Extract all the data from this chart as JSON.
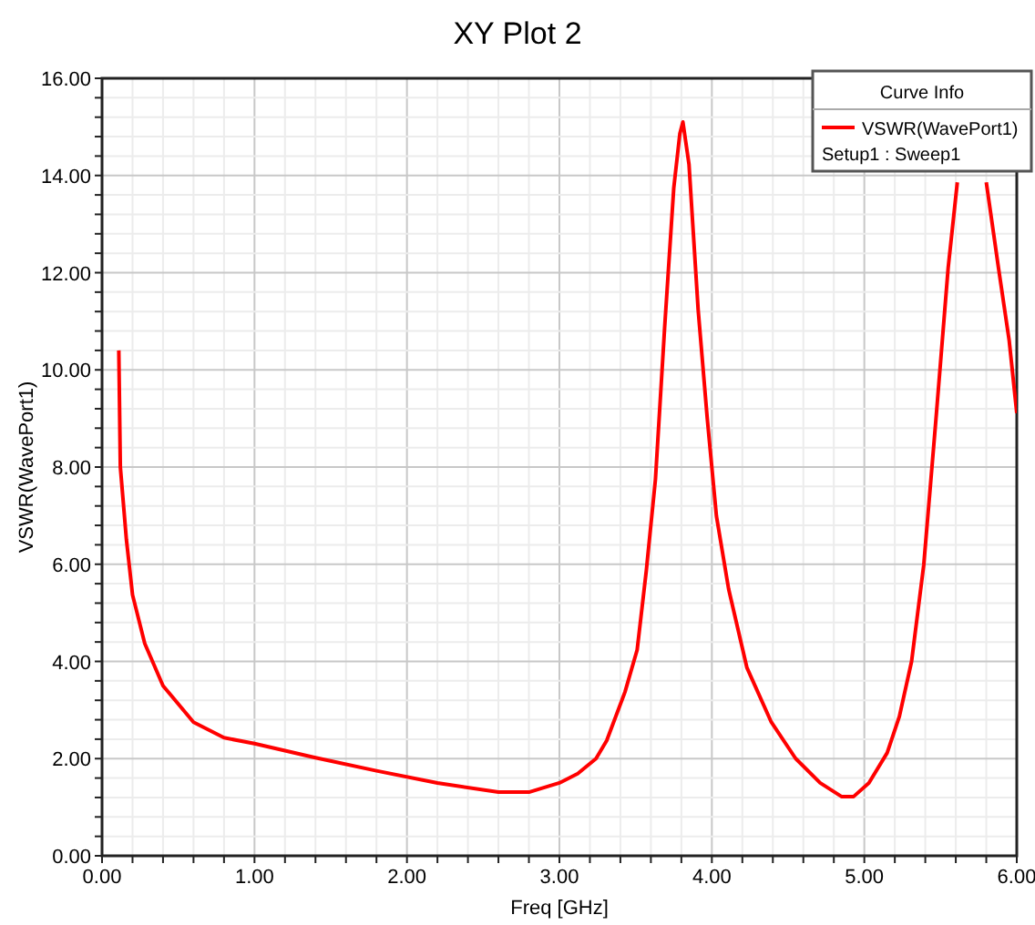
{
  "chart_data": {
    "type": "line",
    "title": "XY Plot 2",
    "xlabel": "Freq [GHz]",
    "ylabel": "VSWR(WavePort1)",
    "legend_title": "Curve Info",
    "annotations": [
      "Setup1 : Sweep1"
    ],
    "xlim": [
      0,
      6
    ],
    "ylim": [
      0,
      16
    ],
    "xticks": [
      {
        "value": 0,
        "label": "0.00"
      },
      {
        "value": 0.2,
        "label": null
      },
      {
        "value": 0.4,
        "label": null
      },
      {
        "value": 0.6,
        "label": null
      },
      {
        "value": 0.8,
        "label": null
      },
      {
        "value": 1,
        "label": "1.00"
      },
      {
        "value": 1.2,
        "label": null
      },
      {
        "value": 1.4,
        "label": null
      },
      {
        "value": 1.6,
        "label": null
      },
      {
        "value": 1.8,
        "label": null
      },
      {
        "value": 2,
        "label": "2.00"
      },
      {
        "value": 2.2,
        "label": null
      },
      {
        "value": 2.4,
        "label": null
      },
      {
        "value": 2.6,
        "label": null
      },
      {
        "value": 2.8,
        "label": null
      },
      {
        "value": 3,
        "label": "3.00"
      },
      {
        "value": 3.2,
        "label": null
      },
      {
        "value": 3.4,
        "label": null
      },
      {
        "value": 3.6,
        "label": null
      },
      {
        "value": 3.8,
        "label": null
      },
      {
        "value": 4,
        "label": "4.00"
      },
      {
        "value": 4.2,
        "label": null
      },
      {
        "value": 4.4,
        "label": null
      },
      {
        "value": 4.6,
        "label": null
      },
      {
        "value": 4.8,
        "label": null
      },
      {
        "value": 5,
        "label": "5.00"
      },
      {
        "value": 5.2,
        "label": null
      },
      {
        "value": 5.4,
        "label": null
      },
      {
        "value": 5.6,
        "label": null
      },
      {
        "value": 5.8,
        "label": null
      },
      {
        "value": 6,
        "label": "6.00"
      }
    ],
    "yticks": [
      {
        "value": 0,
        "label": "0.00"
      },
      {
        "value": 0.4,
        "label": null
      },
      {
        "value": 0.8,
        "label": null
      },
      {
        "value": 1.2,
        "label": null
      },
      {
        "value": 1.6,
        "label": null
      },
      {
        "value": 2,
        "label": "2.00"
      },
      {
        "value": 2.4,
        "label": null
      },
      {
        "value": 2.8,
        "label": null
      },
      {
        "value": 3.2,
        "label": null
      },
      {
        "value": 3.6,
        "label": null
      },
      {
        "value": 4,
        "label": "4.00"
      },
      {
        "value": 4.4,
        "label": null
      },
      {
        "value": 4.8,
        "label": null
      },
      {
        "value": 5.2,
        "label": null
      },
      {
        "value": 5.6,
        "label": null
      },
      {
        "value": 6,
        "label": "6.00"
      },
      {
        "value": 6.4,
        "label": null
      },
      {
        "value": 6.8,
        "label": null
      },
      {
        "value": 7.2,
        "label": null
      },
      {
        "value": 7.6,
        "label": null
      },
      {
        "value": 8,
        "label": "8.00"
      },
      {
        "value": 8.4,
        "label": null
      },
      {
        "value": 8.8,
        "label": null
      },
      {
        "value": 9.2,
        "label": null
      },
      {
        "value": 9.6,
        "label": null
      },
      {
        "value": 10,
        "label": "10.00"
      },
      {
        "value": 10.4,
        "label": null
      },
      {
        "value": 10.8,
        "label": null
      },
      {
        "value": 11.2,
        "label": null
      },
      {
        "value": 11.6,
        "label": null
      },
      {
        "value": 12,
        "label": "12.00"
      },
      {
        "value": 12.4,
        "label": null
      },
      {
        "value": 12.8,
        "label": null
      },
      {
        "value": 13.2,
        "label": null
      },
      {
        "value": 13.6,
        "label": null
      },
      {
        "value": 14,
        "label": "14.00"
      },
      {
        "value": 14.4,
        "label": null
      },
      {
        "value": 14.8,
        "label": null
      },
      {
        "value": 15.2,
        "label": null
      },
      {
        "value": 15.6,
        "label": null
      },
      {
        "value": 16,
        "label": "16.00"
      }
    ],
    "grid": true,
    "legend": "top right",
    "marker": "none",
    "line_style": "solid",
    "series": [
      {
        "name": "VSWR(WavePort1)",
        "color": "#ff0000",
        "x": [
          0.11,
          0.12,
          0.16,
          0.2,
          0.28,
          0.4,
          0.6,
          0.8,
          1.0,
          1.4,
          1.8,
          2.2,
          2.6,
          2.8,
          3.0,
          3.12,
          3.24,
          3.31,
          3.43,
          3.51,
          3.57,
          3.63,
          3.69,
          3.75,
          3.79,
          3.81,
          3.85,
          3.91,
          3.97,
          4.03,
          4.11,
          4.23,
          4.39,
          4.55,
          4.71,
          4.85,
          4.93,
          5.03,
          5.15,
          5.23,
          5.31,
          5.39,
          5.47,
          5.55,
          5.61,
          5.7,
          5.8,
          5.88,
          5.95,
          6.0
        ],
        "values": [
          10.4,
          8.0,
          6.5,
          5.37,
          4.37,
          3.5,
          2.75,
          2.43,
          2.31,
          2.02,
          1.75,
          1.5,
          1.31,
          1.31,
          1.5,
          1.69,
          2.0,
          2.37,
          3.37,
          4.24,
          5.87,
          7.75,
          10.86,
          13.74,
          14.86,
          15.1,
          14.23,
          11.24,
          8.99,
          6.99,
          5.49,
          3.87,
          2.75,
          2.0,
          1.5,
          1.22,
          1.22,
          1.5,
          2.12,
          2.87,
          4.0,
          5.99,
          8.99,
          12.1,
          13.86,
          null,
          13.86,
          12.1,
          10.61,
          9.11
        ]
      }
    ]
  }
}
